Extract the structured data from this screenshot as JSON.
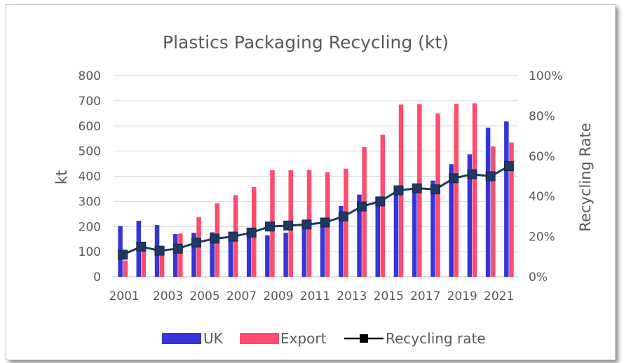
{
  "chart_data": {
    "type": "bar",
    "title": "Plastics Packaging Recycling (kt)",
    "ylabel": "kt",
    "y2label": "Recycling Rate",
    "ylim": [
      0,
      800
    ],
    "y2lim": [
      0,
      100
    ],
    "yticks": [
      "0",
      "100",
      "200",
      "300",
      "400",
      "500",
      "600",
      "700",
      "800"
    ],
    "y2ticks": [
      "0%",
      "20%",
      "40%",
      "60%",
      "80%",
      "100%"
    ],
    "categories": [
      "2001",
      "2002",
      "2003",
      "2004",
      "2005",
      "2006",
      "2007",
      "2008",
      "2009",
      "2010",
      "2011",
      "2012",
      "2013",
      "2014",
      "2015",
      "2016",
      "2017",
      "2018",
      "2019",
      "2020",
      "2021",
      "2022"
    ],
    "xtick_labels": [
      "2001",
      "2003",
      "2005",
      "2007",
      "2009",
      "2011",
      "2013",
      "2015",
      "2017",
      "2019",
      "2021"
    ],
    "grid": true,
    "legend_position": "bottom",
    "series": [
      {
        "name": "UK",
        "type": "bar",
        "axis": "left",
        "color": "#3535d9",
        "values": [
          202,
          223,
          206,
          170,
          175,
          177,
          172,
          190,
          165,
          175,
          206,
          209,
          282,
          327,
          310,
          350,
          352,
          383,
          448,
          487,
          593,
          618
        ]
      },
      {
        "name": "Export",
        "type": "bar",
        "axis": "left",
        "color": "#ff4b6e",
        "values": [
          65,
          110,
          120,
          172,
          238,
          292,
          325,
          357,
          424,
          424,
          425,
          416,
          430,
          516,
          565,
          685,
          687,
          650,
          688,
          690,
          519,
          534
        ]
      },
      {
        "name": "Recycling rate",
        "type": "line",
        "axis": "right",
        "color": "#1f3864",
        "values": [
          11,
          15,
          13,
          14,
          17,
          19,
          20,
          22,
          25,
          25.5,
          26,
          27,
          30,
          35,
          37.5,
          43,
          44,
          43.5,
          49,
          51,
          50,
          55
        ]
      }
    ]
  }
}
